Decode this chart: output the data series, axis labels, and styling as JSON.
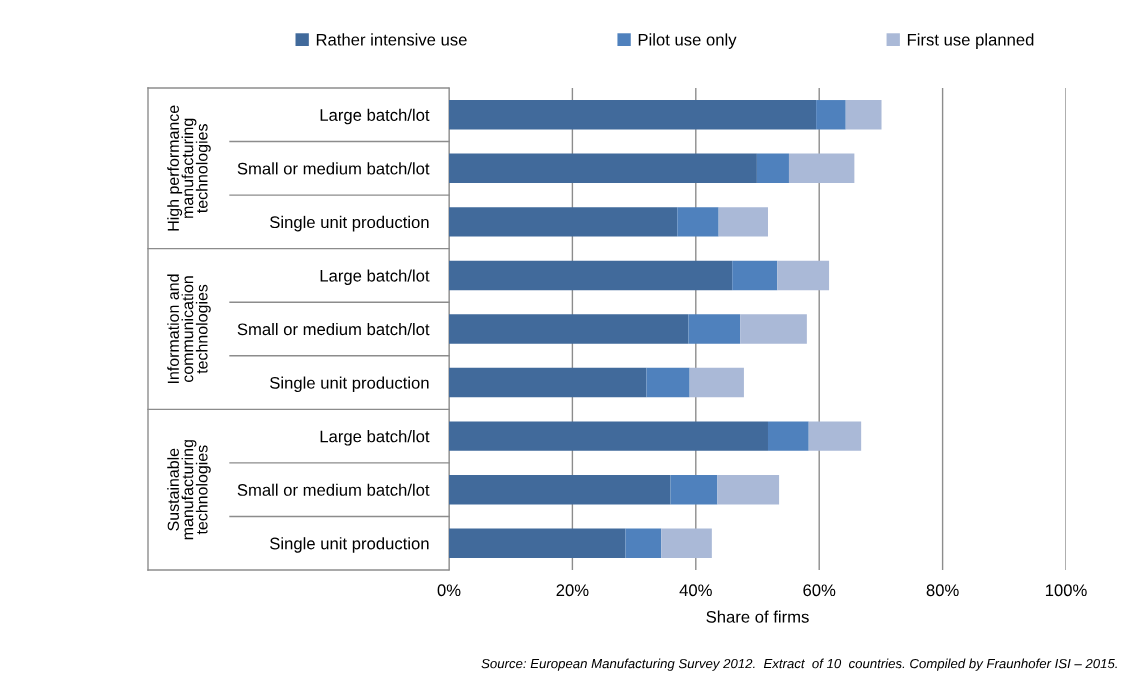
{
  "chart_data": {
    "type": "bar",
    "orientation": "horizontal",
    "stacked": true,
    "categories": [
      "Large batch/lot",
      "Small or medium batch/lot",
      "Single unit production",
      "Large batch/lot",
      "Small or medium batch/lot",
      "Single unit production",
      "Large batch/lot",
      "Small or medium batch/lot",
      "Single unit production"
    ],
    "series": [
      {
        "name": "Rather intensive use",
        "color": "#416a9b",
        "values": [
          59.5,
          49.9,
          37.0,
          45.9,
          38.8,
          32.0,
          51.7,
          35.9,
          28.6
        ]
      },
      {
        "name": "Pilot use only",
        "color": "#4f81bd",
        "values": [
          4.8,
          5.2,
          6.7,
          7.3,
          8.4,
          7.0,
          6.6,
          7.6,
          5.8
        ]
      },
      {
        "name": "First use planned",
        "color": "#aab9d7",
        "values": [
          5.8,
          10.6,
          8.0,
          8.4,
          10.8,
          8.8,
          8.5,
          10.0,
          8.2
        ]
      }
    ],
    "xlim": [
      0,
      100
    ],
    "xticks": [
      {
        "value": 0,
        "label": "0%"
      },
      {
        "value": 20,
        "label": "20%"
      },
      {
        "value": 40,
        "label": "40%"
      },
      {
        "value": 60,
        "label": "60%"
      },
      {
        "value": 80,
        "label": "80%"
      },
      {
        "value": 100,
        "label": "100%"
      }
    ],
    "xlabel": "Share of firms",
    "grid": "x",
    "legend": "top",
    "annotations": [
      "High performance\nmanufacturing\ntechnologies",
      "Information and\ncommunication\ntechnologies",
      "Sustainable\nmanufacturing\ntechnologies",
      "Source: European Manufacturing Survey 2012.  Extract  of 10  countries. Compiled by Fraunhofer ISI – 2015."
    ]
  }
}
